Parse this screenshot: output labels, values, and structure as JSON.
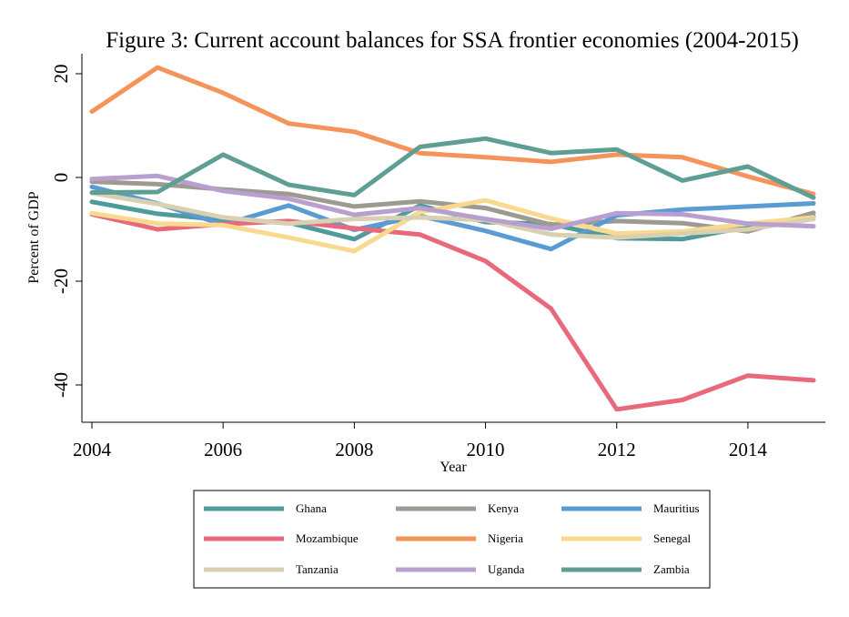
{
  "chart_data": {
    "type": "line",
    "title": "Figure 3: Current account balances for SSA frontier economies (2004-2015)",
    "xlabel": "Year",
    "ylabel": "Percent of GDP",
    "x": [
      2004,
      2005,
      2006,
      2007,
      2008,
      2009,
      2010,
      2011,
      2012,
      2013,
      2014,
      2015
    ],
    "xticks": [
      "2004",
      "2006",
      "2008",
      "2010",
      "2012",
      "2014"
    ],
    "yticks": [
      "20",
      "0",
      "-20",
      "-40"
    ],
    "xlim": [
      2004,
      2015.1
    ],
    "ylim": [
      -47.5,
      22.5
    ],
    "grid": false,
    "legend_position": "bottom",
    "series": [
      {
        "name": "Ghana",
        "color": "#4f9a9a",
        "values": [
          -4.7,
          -7.0,
          -8.2,
          -8.7,
          -11.9,
          -5.4,
          -8.6,
          -9.0,
          -11.7,
          -11.9,
          -9.5,
          -7.5
        ]
      },
      {
        "name": "Kenya",
        "color": "#9d9a91",
        "values": [
          -0.8,
          -1.3,
          -2.3,
          -3.2,
          -5.6,
          -4.6,
          -5.9,
          -9.1,
          -8.4,
          -8.8,
          -10.4,
          -6.8
        ]
      },
      {
        "name": "Mauritius",
        "color": "#5b9bd3",
        "values": [
          -1.8,
          -5.0,
          -9.1,
          -5.4,
          -10.1,
          -7.4,
          -10.3,
          -13.8,
          -7.3,
          -6.2,
          -5.6,
          -5.0
        ]
      },
      {
        "name": "Mozambique",
        "color": "#e8697b",
        "values": [
          -7.1,
          -10.0,
          -9.0,
          -8.4,
          -9.8,
          -11.0,
          -16.1,
          -25.3,
          -44.7,
          -42.9,
          -38.2,
          -39.1
        ]
      },
      {
        "name": "Nigeria",
        "color": "#f4935a",
        "values": [
          12.7,
          21.2,
          16.3,
          10.4,
          8.8,
          4.7,
          3.9,
          3.0,
          4.4,
          3.9,
          0.2,
          -3.2
        ]
      },
      {
        "name": "Senegal",
        "color": "#f8d98e",
        "values": [
          -6.9,
          -8.9,
          -9.2,
          -11.6,
          -14.2,
          -6.7,
          -4.4,
          -7.9,
          -10.8,
          -10.4,
          -8.9,
          -7.7
        ]
      },
      {
        "name": "Tanzania",
        "color": "#d8d0b0",
        "values": [
          -3.0,
          -5.1,
          -7.7,
          -8.9,
          -8.0,
          -7.7,
          -8.2,
          -11.0,
          -11.6,
          -10.8,
          -10.0,
          -8.0
        ]
      },
      {
        "name": "Uganda",
        "color": "#b89fd0",
        "values": [
          -0.3,
          0.3,
          -2.6,
          -4.1,
          -7.2,
          -5.9,
          -8.0,
          -9.9,
          -6.9,
          -7.1,
          -8.9,
          -9.4
        ]
      },
      {
        "name": "Zambia",
        "color": "#5f9f93",
        "values": [
          -2.9,
          -2.8,
          4.4,
          -1.4,
          -3.4,
          5.9,
          7.5,
          4.7,
          5.4,
          -0.6,
          2.1,
          -3.9
        ]
      }
    ]
  }
}
